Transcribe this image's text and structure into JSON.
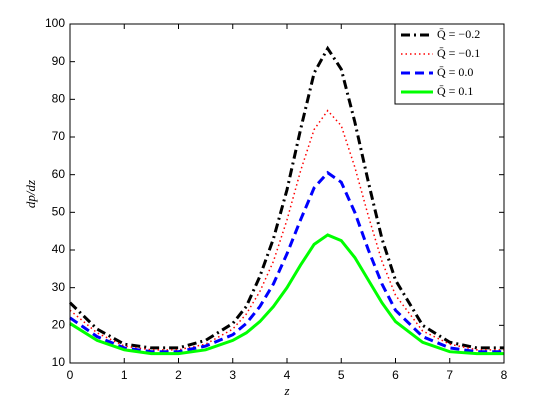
{
  "chart_data": {
    "type": "line",
    "xlabel": "z",
    "ylabel": "dp/dz",
    "x": [
      0,
      0.5,
      1,
      1.5,
      2,
      2.5,
      3,
      3.25,
      3.5,
      3.75,
      4,
      4.25,
      4.5,
      4.75,
      5,
      5.25,
      5.5,
      5.75,
      6,
      6.5,
      7,
      7.5,
      8
    ],
    "series": [
      {
        "name": "Q̄ = −0.2",
        "color": "#000000",
        "style": "dashdot",
        "values": [
          26,
          19,
          15,
          14,
          14,
          16,
          20.5,
          25,
          33,
          43,
          56,
          72,
          87,
          93.5,
          88,
          74,
          58,
          43,
          32,
          20,
          15.5,
          14,
          14
        ]
      },
      {
        "name": "Q̄ = −0.1",
        "color": "#ff0000",
        "style": "dotted",
        "values": [
          24,
          18,
          14.5,
          13.5,
          13.5,
          15,
          19,
          23,
          29,
          37,
          48,
          61,
          72,
          77,
          73,
          62,
          49,
          37,
          28,
          18.5,
          15,
          13.5,
          13.5
        ]
      },
      {
        "name": "Q̄ = 0.0",
        "color": "#0000ff",
        "style": "dashed",
        "values": [
          22,
          17,
          14,
          13,
          13,
          14.5,
          17.5,
          20.5,
          25,
          31,
          39,
          48,
          56.5,
          60.5,
          58,
          50,
          40,
          31,
          24,
          17,
          14,
          13,
          13
        ]
      },
      {
        "name": "Q̄ = 0.1",
        "color": "#00ff00",
        "style": "solid",
        "values": [
          20.5,
          16,
          13.5,
          12.5,
          12.5,
          13.5,
          16,
          18,
          21,
          25,
          30,
          36,
          41.5,
          44,
          42.5,
          38,
          32,
          26,
          21,
          15.5,
          13,
          12.5,
          12.5
        ]
      }
    ],
    "xlim": [
      0,
      8
    ],
    "xticks": [
      0,
      1,
      2,
      3,
      4,
      5,
      6,
      7,
      8
    ],
    "ylim": [
      10,
      100
    ],
    "yticks": [
      10,
      20,
      30,
      40,
      50,
      60,
      70,
      80,
      90,
      100
    ],
    "grid": false,
    "legend": "upper right"
  }
}
